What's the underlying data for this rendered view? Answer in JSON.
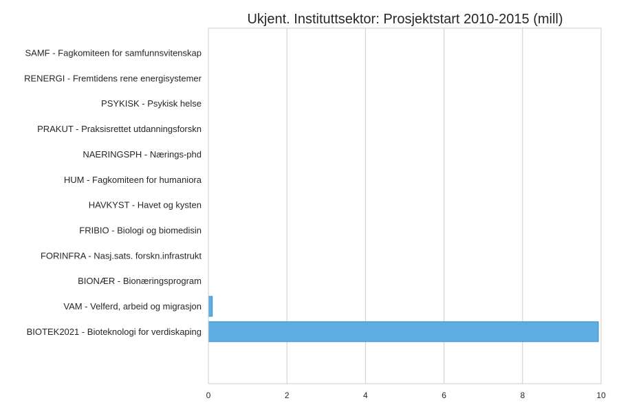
{
  "chart_data": {
    "type": "bar",
    "orientation": "horizontal",
    "title": "Ukjent. Instituttsektor: Prosjektstart 2010-2015 (mill)",
    "xlabel": "",
    "ylabel": "",
    "xlim": [
      0,
      10
    ],
    "xticks": [
      "0",
      "2",
      "4",
      "6",
      "8",
      "10"
    ],
    "grid": true,
    "categories": [
      "SAMF - Fagkomiteen for samfunnsvitenskap",
      "RENERGI - Fremtidens rene energisystemer",
      "PSYKISK - Psykisk helse",
      "PRAKUT - Praksisrettet utdanningsforskn",
      "NAERINGSPH - Nærings-phd",
      "HUM - Fagkomiteen for humaniora",
      "HAVKYST - Havet og kysten",
      "FRIBIO - Biologi og biomedisin",
      "FORINFRA - Nasj.sats. forskn.infrastrukt",
      "BIONÆR - Bionæringsprogram",
      "VAM - Velferd, arbeid og migrasjon",
      "BIOTEK2021 - Bioteknologi for verdiskaping"
    ],
    "values": [
      0.001,
      0.001,
      0.001,
      0.001,
      0.001,
      0.001,
      0.002,
      0.002,
      0.003,
      0.005,
      0.1,
      9.93
    ],
    "colors": {
      "bar": "#5dade2",
      "bar_edge": "#3a8fc7",
      "grid": "#cccccc",
      "frame": "#cccccc"
    }
  }
}
